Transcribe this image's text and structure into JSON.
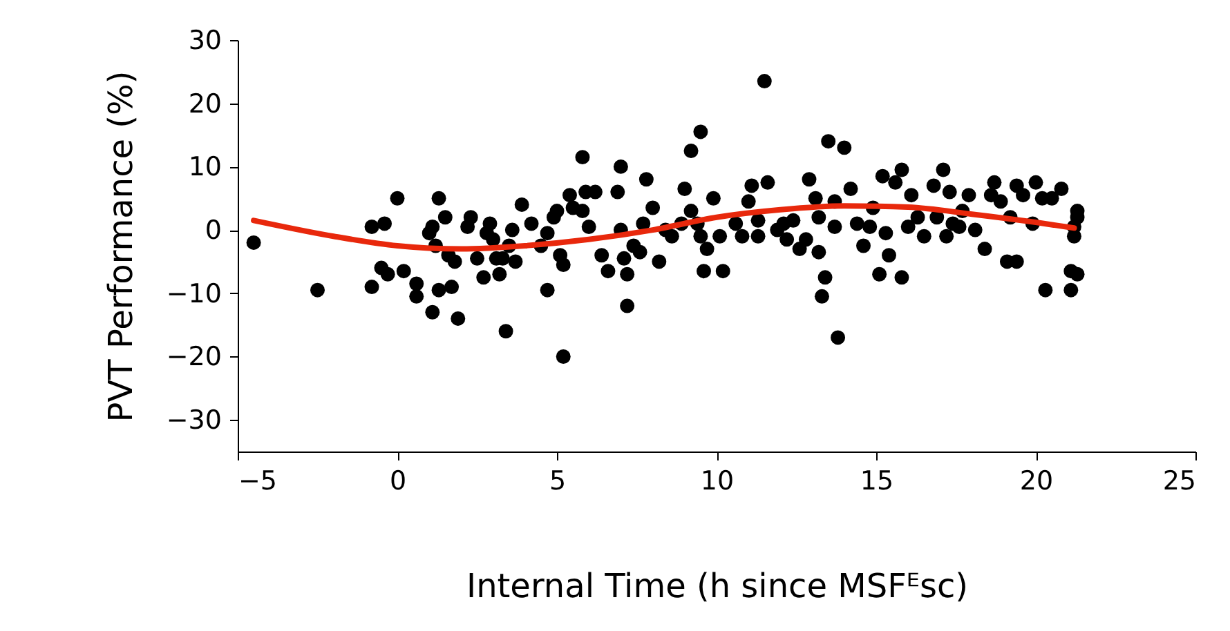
{
  "chart_data": {
    "type": "scatter",
    "xlabel": "Internal Time (h since MSFᴱsc)",
    "ylabel": "PVT Performance (%)",
    "xlim": [
      -5,
      25
    ],
    "xticks": [
      -5,
      0,
      5,
      10,
      15,
      20,
      25
    ],
    "ylim": [
      -35,
      30
    ],
    "yticks": [
      -30,
      -20,
      -10,
      0,
      10,
      20,
      30
    ],
    "grid": false,
    "series": [
      {
        "color": "#000000",
        "marker": "circle",
        "x": [
          -4.5,
          -2.5,
          -0.8,
          -0.4,
          0,
          -0.8,
          -0.5,
          -0.3,
          0.2,
          0.6,
          0.6,
          1,
          1.1,
          1.2,
          1.3,
          1.3,
          1.1,
          1.5,
          1.6,
          1.7,
          1.8,
          1.9,
          2.2,
          2.3,
          2.5,
          2.7,
          2.8,
          2.9,
          3,
          3.1,
          3.2,
          3.3,
          3.4,
          3.5,
          3.6,
          3.7,
          3.9,
          4.2,
          4.5,
          4.7,
          4.7,
          4.9,
          5,
          5.1,
          5.2,
          5.2,
          5.4,
          5.5,
          5.8,
          5.8,
          5.9,
          6,
          6.2,
          6.4,
          6.6,
          6.9,
          7,
          7,
          7.1,
          7.2,
          7.2,
          7.4,
          7.6,
          7.7,
          7.8,
          8,
          8.2,
          8.4,
          8.6,
          8.9,
          9,
          9.2,
          9.2,
          9.4,
          9.5,
          9.5,
          9.6,
          9.7,
          9.9,
          10.1,
          10.2,
          10.6,
          10.8,
          11,
          11.1,
          11.3,
          11.3,
          11.5,
          11.6,
          11.9,
          12.1,
          12.2,
          12.4,
          12.6,
          12.8,
          12.9,
          13.1,
          13.2,
          13.2,
          13.3,
          13.4,
          13.5,
          13.7,
          13.7,
          13.8,
          14,
          14.2,
          14.4,
          14.6,
          14.8,
          14.9,
          15.1,
          15.2,
          15.3,
          15.4,
          15.6,
          15.8,
          15.8,
          16,
          16.1,
          16.3,
          16.5,
          16.8,
          16.9,
          17.1,
          17.2,
          17.3,
          17.4,
          17.6,
          17.7,
          17.9,
          18.1,
          18.4,
          18.6,
          18.7,
          18.9,
          19.1,
          19.2,
          19.4,
          19.4,
          19.6,
          19.9,
          20,
          20.2,
          20.3,
          20.5,
          20.8,
          21.1,
          21.1,
          21.3,
          21.2,
          21.3,
          21.3,
          21.2
        ],
        "values": [
          -2,
          -9.5,
          0.5,
          1,
          5,
          -9,
          -6,
          -7,
          -6.5,
          -8.5,
          -10.5,
          -0.5,
          0.5,
          -2.5,
          5,
          -9.5,
          -13,
          2,
          -4,
          -9,
          -5,
          -14,
          0.5,
          2,
          -4.5,
          -7.5,
          -0.5,
          1,
          -1.5,
          -4.5,
          -7,
          -4.5,
          -16,
          -2.5,
          0,
          -5,
          4,
          1,
          -2.5,
          -9.5,
          -0.5,
          2,
          3,
          -4,
          -20,
          -5.5,
          5.5,
          3.5,
          11.5,
          3,
          6,
          0.5,
          6,
          -4,
          -6.5,
          6,
          10,
          0,
          -4.5,
          -12,
          -7,
          -2.5,
          -3.5,
          1,
          8,
          3.5,
          -5,
          0,
          -1,
          1,
          6.5,
          12.5,
          3,
          1,
          15.5,
          -1,
          -6.5,
          -3,
          5,
          -1,
          -6.5,
          1,
          -1,
          4.5,
          7,
          1.5,
          -1,
          23.5,
          7.5,
          0,
          1,
          -1.5,
          1.5,
          -3,
          -1.5,
          8,
          5,
          2,
          -3.5,
          -10.5,
          -7.5,
          14,
          0.5,
          4.5,
          -17,
          13,
          6.5,
          1,
          -2.5,
          0.5,
          3.5,
          -7,
          8.5,
          -0.5,
          -4,
          7.5,
          9.5,
          -7.5,
          0.5,
          5.5,
          2,
          -1,
          7,
          2,
          9.5,
          -1,
          6,
          1,
          0.5,
          3,
          5.5,
          0,
          -3,
          5.5,
          7.5,
          4.5,
          -5,
          2,
          -5,
          7,
          5.5,
          1,
          7.5,
          5,
          -9.5,
          5,
          6.5,
          -9.5,
          -6.5,
          -7,
          -1,
          2,
          3,
          0.5
        ]
      },
      {
        "type": "line",
        "color": "#e8280c",
        "marker": "none",
        "line_style": "solid",
        "x": [
          -4.5,
          -2,
          0,
          2,
          4,
          6,
          8,
          10,
          12,
          14,
          16,
          18,
          20,
          21.2
        ],
        "values": [
          1.5,
          -1,
          -2.5,
          -3,
          -2.5,
          -1.5,
          0,
          2,
          3.2,
          3.8,
          3.6,
          2.5,
          1.2,
          0.3
        ]
      }
    ]
  }
}
